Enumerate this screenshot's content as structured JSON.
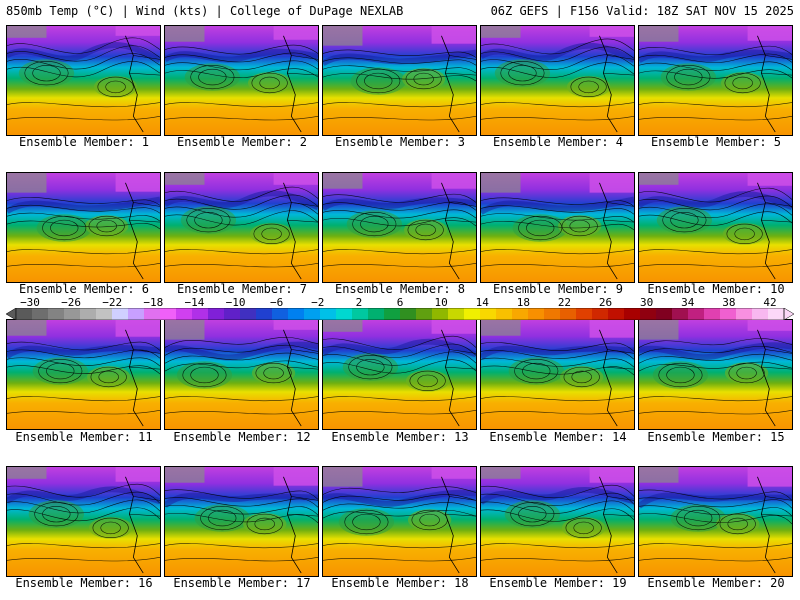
{
  "header": {
    "left": "850mb Temp (°C) | Wind (kts) | College of DuPage NEXLAB",
    "right": "06Z GEFS | F156 Valid: 18Z SAT NOV 15 2025"
  },
  "members": [
    "Ensemble Member: 1",
    "Ensemble Member: 2",
    "Ensemble Member: 3",
    "Ensemble Member: 4",
    "Ensemble Member: 5",
    "Ensemble Member: 6",
    "Ensemble Member: 7",
    "Ensemble Member: 8",
    "Ensemble Member: 9",
    "Ensemble Member: 10",
    "Ensemble Member: 11",
    "Ensemble Member: 12",
    "Ensemble Member: 13",
    "Ensemble Member: 14",
    "Ensemble Member: 15",
    "Ensemble Member: 16",
    "Ensemble Member: 17",
    "Ensemble Member: 18",
    "Ensemble Member: 19",
    "Ensemble Member: 20"
  ],
  "colorbar": {
    "ticks": [
      "−30",
      "−26",
      "−22",
      "−18",
      "−14",
      "−10",
      "−6",
      "−2",
      "2",
      "6",
      "10",
      "14",
      "18",
      "22",
      "26",
      "30",
      "34",
      "38",
      "42"
    ],
    "colors": [
      "#5a5a5a",
      "#6e6e6e",
      "#838383",
      "#989898",
      "#adadad",
      "#c2c2c2",
      "#d0d0ff",
      "#c8a0ff",
      "#e070f0",
      "#f060f8",
      "#d040f0",
      "#b030e8",
      "#8020d8",
      "#6020c8",
      "#4030c0",
      "#2040d0",
      "#1060e0",
      "#0080f0",
      "#00a0f0",
      "#00c0e8",
      "#00d8d0",
      "#00c8a0",
      "#00b070",
      "#10a040",
      "#309020",
      "#60a010",
      "#90b800",
      "#c8d800",
      "#f0f000",
      "#f8d800",
      "#f8c000",
      "#f8a800",
      "#f89000",
      "#f07800",
      "#e86000",
      "#e04000",
      "#d02800",
      "#c01000",
      "#a80000",
      "#900010",
      "#800020",
      "#a01050",
      "#c02080",
      "#e040b0",
      "#f060d0",
      "#f890e0",
      "#f8b8f0",
      "#fcd8f8"
    ]
  }
}
